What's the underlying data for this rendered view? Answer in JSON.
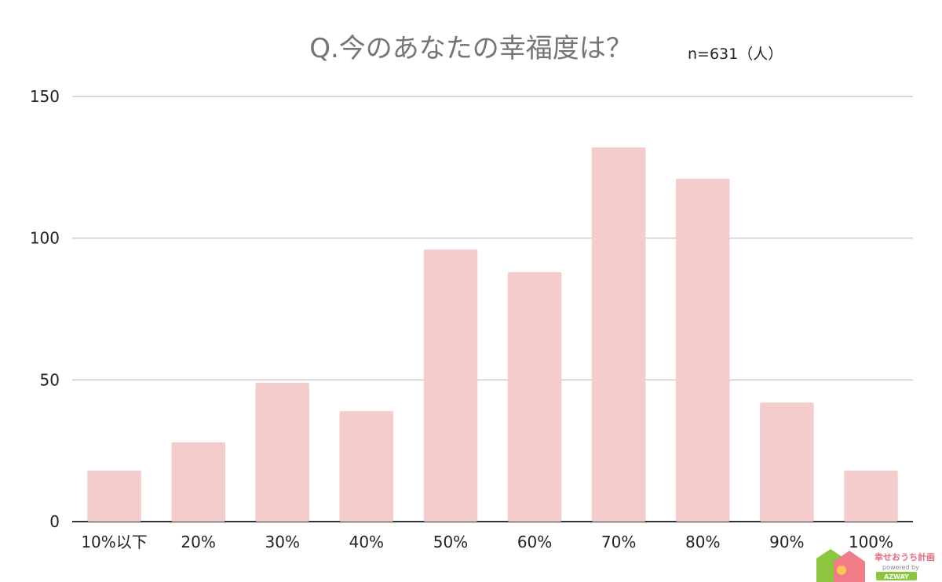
{
  "chart_data": {
    "type": "bar",
    "title": "Q.今のあなたの幸福度は？",
    "note": "n=631（人）",
    "categories": [
      "10%以下",
      "20%",
      "30%",
      "40%",
      "50%",
      "60%",
      "70%",
      "80%",
      "90%",
      "100%"
    ],
    "values": [
      18,
      28,
      49,
      39,
      96,
      88,
      132,
      121,
      42,
      18
    ],
    "ylim": [
      0,
      150
    ],
    "yticks": [
      0,
      50,
      100,
      150
    ],
    "xlabel": "",
    "ylabel": "",
    "grid": true,
    "bar_color": "#f4cccc",
    "gridline_color": "#cccccc",
    "axis_color": "#333333"
  },
  "logo": {
    "name": "幸せおうち計画",
    "tagline": "powered by",
    "brand": "AZWAY",
    "colors": {
      "green": "#8cc63f",
      "pink": "#f07c8a",
      "yellow": "#f9c74f"
    }
  }
}
